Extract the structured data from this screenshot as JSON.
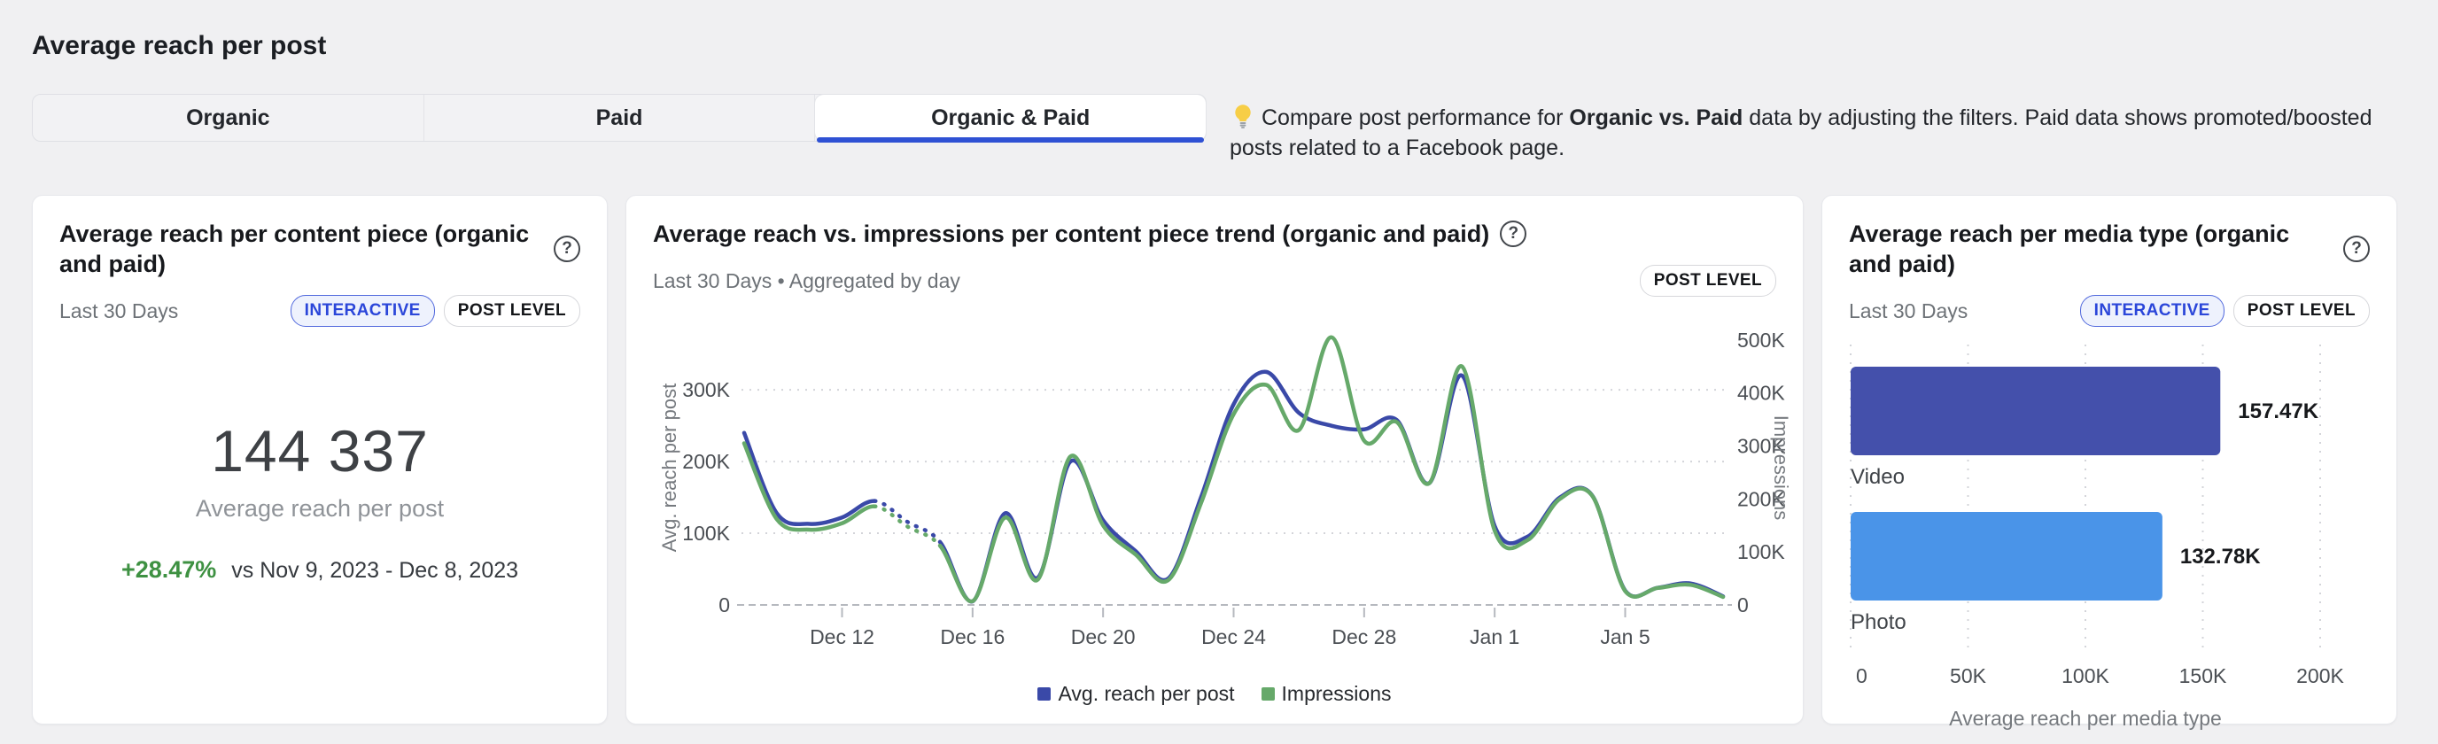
{
  "page": {
    "title": "Average reach per post",
    "background": "#f0f0f2",
    "accent": "#2f51d4"
  },
  "tabs": [
    {
      "label": "Organic",
      "active": false
    },
    {
      "label": "Paid",
      "active": false
    },
    {
      "label": "Organic & Paid",
      "active": true
    }
  ],
  "tip": {
    "icon": "lightbulb-icon",
    "text_pre": "Compare post performance for ",
    "text_bold": "Organic vs. Paid",
    "text_post": " data by adjusting the filters. Paid data shows promoted/boosted posts related to a Facebook page."
  },
  "cards": {
    "kpi": {
      "title": "Average reach per content piece (organic and paid)",
      "help_icon": "?",
      "period": "Last 30 Days",
      "badges": {
        "interactive": "INTERACTIVE",
        "post_level": "POST LEVEL"
      },
      "value": "144 337",
      "value_label": "Average reach per post",
      "delta": "+28.47%",
      "delta_color": "#3e9142",
      "comparison": "vs Nov 9, 2023 - Dec 8, 2023"
    },
    "trend": {
      "title": "Average reach vs. impressions per content piece trend (organic and paid)",
      "help_icon": "?",
      "period": "Last 30 Days • Aggregated by day",
      "badges": {
        "post_level": "POST LEVEL"
      }
    },
    "media": {
      "title": "Average reach per media type (organic and paid)",
      "help_icon": "?",
      "period": "Last 30 Days",
      "badges": {
        "interactive": "INTERACTIVE",
        "post_level": "POST LEVEL"
      }
    }
  },
  "chart_data": [
    {
      "id": "reach-vs-impressions-trend",
      "type": "line",
      "title": "Average reach vs. impressions per content piece trend (organic and paid)",
      "x": [
        "Dec 9",
        "Dec 10",
        "Dec 11",
        "Dec 12",
        "Dec 13",
        "Dec 14",
        "Dec 15",
        "Dec 16",
        "Dec 17",
        "Dec 18",
        "Dec 19",
        "Dec 20",
        "Dec 21",
        "Dec 22",
        "Dec 23",
        "Dec 24",
        "Dec 25",
        "Dec 26",
        "Dec 27",
        "Dec 28",
        "Dec 29",
        "Dec 30",
        "Dec 31",
        "Jan 1",
        "Jan 2",
        "Jan 3",
        "Jan 4",
        "Jan 5",
        "Jan 6",
        "Jan 7",
        "Jan 8"
      ],
      "x_tick_labels": [
        "Dec 12",
        "Dec 16",
        "Dec 20",
        "Dec 24",
        "Dec 28",
        "Jan 1",
        "Jan 5"
      ],
      "x_tick_indices": [
        3,
        7,
        11,
        15,
        19,
        23,
        27
      ],
      "series": [
        {
          "name": "Avg. reach per post",
          "axis": "left",
          "color": "#3a49a8",
          "values_k": [
            240,
            128,
            113,
            122,
            145,
            116,
            88,
            5,
            128,
            38,
            200,
            118,
            75,
            37,
            150,
            280,
            325,
            268,
            250,
            245,
            258,
            170,
            320,
            110,
            95,
            150,
            152,
            20,
            24,
            30,
            12
          ]
        },
        {
          "name": "Impressions",
          "axis": "right",
          "color": "#66a96a",
          "values_k": [
            305,
            162,
            142,
            154,
            186,
            148,
            112,
            7,
            165,
            48,
            280,
            150,
            95,
            47,
            192,
            360,
            415,
            330,
            505,
            310,
            345,
            230,
            450,
            140,
            122,
            200,
            205,
            26,
            32,
            38,
            15
          ]
        }
      ],
      "dashed_segment_indices": [
        4,
        6
      ],
      "ylabel_left": "Avg. reach per post",
      "ylabel_right": "Impressions",
      "left_ticks": [
        {
          "v": 0,
          "label": "0"
        },
        {
          "v": 100,
          "label": "100K"
        },
        {
          "v": 200,
          "label": "200K"
        },
        {
          "v": 300,
          "label": "300K"
        }
      ],
      "right_ticks": [
        {
          "v": 0,
          "label": "0"
        },
        {
          "v": 100,
          "label": "100K"
        },
        {
          "v": 200,
          "label": "200K"
        },
        {
          "v": 300,
          "label": "300K"
        },
        {
          "v": 400,
          "label": "400K"
        },
        {
          "v": 500,
          "label": "500K"
        }
      ],
      "left_axis_max_k": 383,
      "right_axis_max_k": 518,
      "grid": "dotted-horizontal",
      "legend_position": "bottom",
      "units": "thousands"
    },
    {
      "id": "reach-per-media-type",
      "type": "bar",
      "orientation": "horizontal",
      "categories": [
        "Video",
        "Photo"
      ],
      "values_k": [
        157.47,
        132.78
      ],
      "value_labels": [
        "157.47K",
        "132.78K"
      ],
      "colors": [
        "#4450ab",
        "#4a94e8"
      ],
      "xlabel": "Average reach per media type",
      "x_ticks": [
        {
          "v": 0,
          "label": "0"
        },
        {
          "v": 50,
          "label": "50K"
        },
        {
          "v": 100,
          "label": "100K"
        },
        {
          "v": 150,
          "label": "150K"
        },
        {
          "v": 200,
          "label": "200K"
        }
      ],
      "xlim_k": [
        0,
        222
      ],
      "grid": "dotted-vertical",
      "units": "thousands"
    }
  ]
}
